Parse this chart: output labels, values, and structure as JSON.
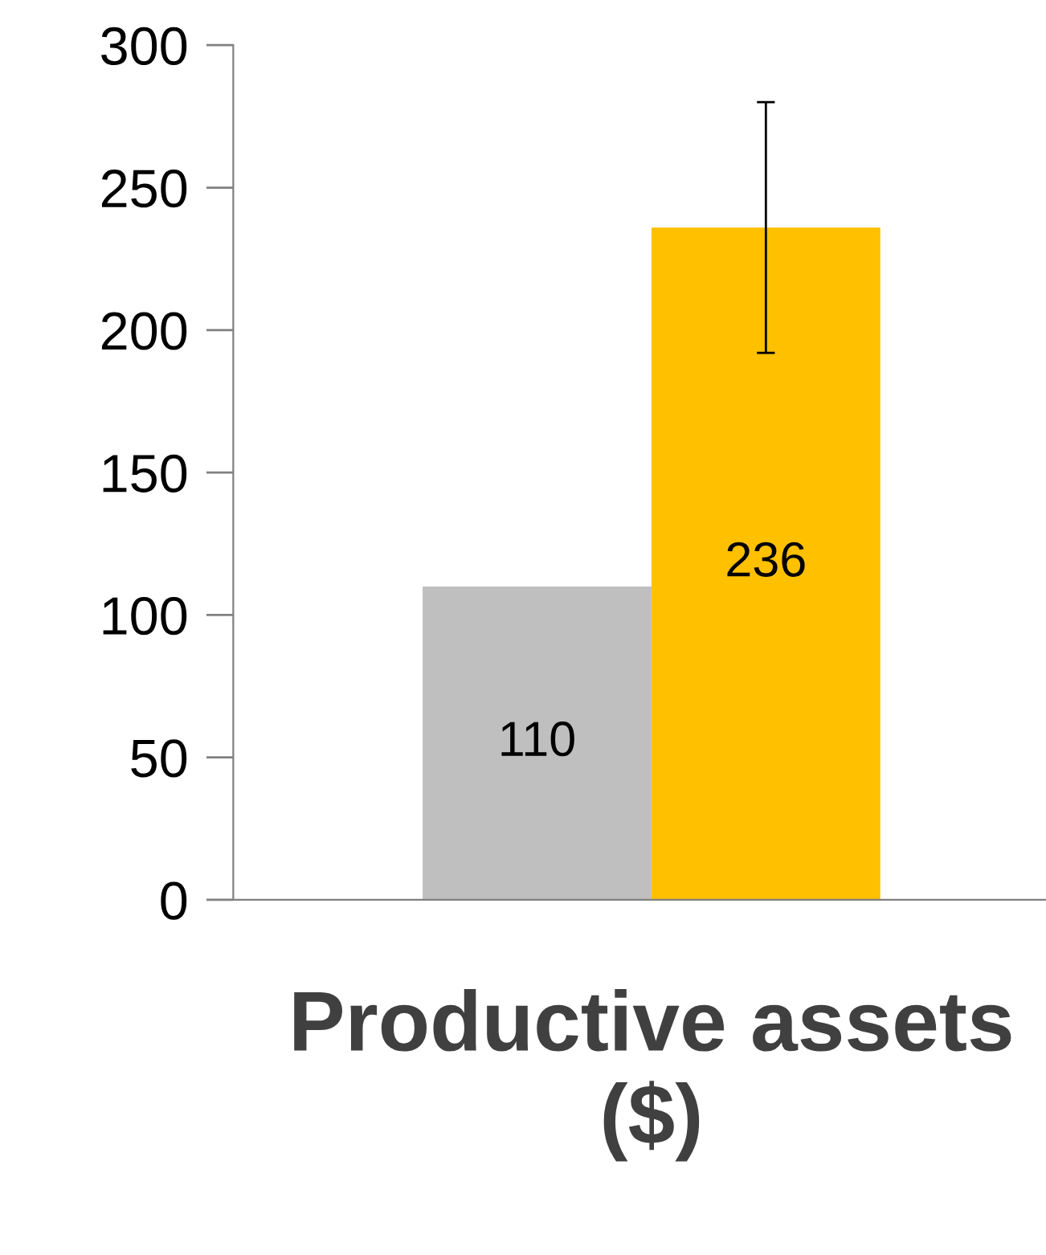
{
  "chart_data": {
    "type": "bar",
    "categories": [
      "Productive assets ($)"
    ],
    "series": [
      {
        "color": "#bfbfbf",
        "values": [
          110
        ]
      },
      {
        "color": "#ffc000",
        "values": [
          236
        ],
        "errors": [
          [
            192,
            280
          ]
        ]
      }
    ],
    "ylim": [
      0,
      300
    ],
    "yticks": [
      0,
      50,
      100,
      150,
      200,
      250,
      300
    ],
    "data_labels": true,
    "grid": false,
    "legend": false
  }
}
